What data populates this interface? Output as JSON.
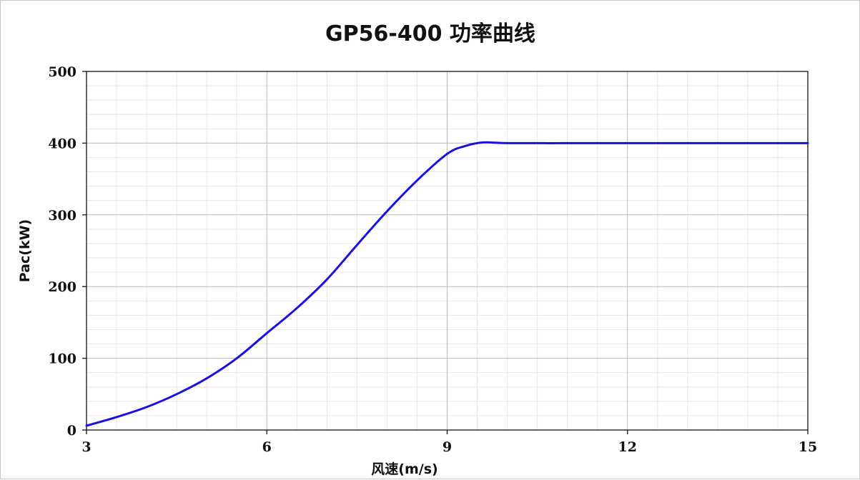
{
  "chart_data": {
    "type": "line",
    "title": "GP56-400  功率曲线",
    "xlabel": "风速(m/s)",
    "ylabel": "Pac(kW)",
    "xlim": [
      3,
      15
    ],
    "ylim": [
      0,
      500
    ],
    "x_ticks": [
      3,
      6,
      9,
      12,
      15
    ],
    "y_ticks": [
      0,
      100,
      200,
      300,
      400,
      500
    ],
    "x_tick_labels": [
      "3",
      "6",
      "9",
      "12",
      "15"
    ],
    "y_tick_labels": [
      "0",
      "100",
      "200",
      "300",
      "400",
      "500"
    ],
    "grid": true,
    "legend": "none",
    "series": [
      {
        "color": "#1a10e6",
        "x": [
          3.0,
          3.5,
          4.0,
          4.5,
          5.0,
          5.5,
          6.0,
          6.5,
          7.0,
          7.5,
          8.0,
          8.5,
          9.0,
          9.3,
          9.6,
          10.0,
          11.0,
          12.0,
          13.0,
          14.0,
          15.0
        ],
        "y": [
          6,
          18,
          32,
          50,
          72,
          100,
          135,
          170,
          210,
          258,
          305,
          348,
          385,
          396,
          401,
          400,
          400,
          400,
          400,
          400,
          400
        ]
      }
    ]
  }
}
